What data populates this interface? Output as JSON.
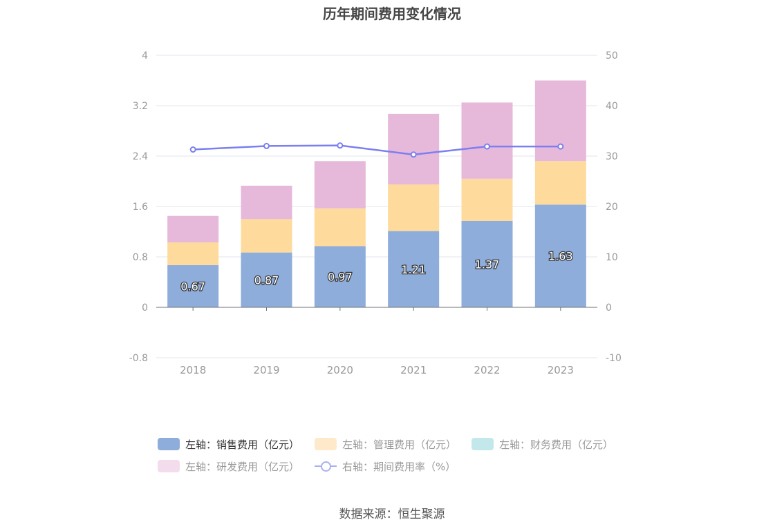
{
  "title": "历年期间费用变化情况",
  "source": "数据来源：恒生聚源",
  "colors": {
    "sales": "#8eaddb",
    "admin": "#fedb9c",
    "finance": "#c3e8ec",
    "rnd": "#e6b8da",
    "ratio": "#7b7ff0",
    "grid": "#e1e4ee",
    "axis": "#999999"
  },
  "legend": {
    "sales": "左轴：销售费用（亿元）",
    "admin": "左轴：管理费用（亿元）",
    "finance": "左轴：财务费用（亿元）",
    "rnd": "左轴：研发费用（亿元）",
    "ratio": "右轴：期间费用率（%）"
  },
  "chart_data": {
    "type": "bar",
    "stacked": true,
    "categories": [
      "2018",
      "2019",
      "2020",
      "2021",
      "2022",
      "2023"
    ],
    "left_axis": {
      "ticks": [
        "4",
        "3.2",
        "2.4",
        "1.6",
        "0.8",
        "0",
        "-0.8"
      ],
      "ylim": [
        -0.8,
        4
      ]
    },
    "right_axis": {
      "ticks": [
        "50",
        "40",
        "30",
        "20",
        "10",
        "0",
        "-10"
      ],
      "ylim": [
        -10,
        50
      ]
    },
    "series": [
      {
        "key": "sales",
        "values": [
          0.67,
          0.87,
          0.97,
          1.21,
          1.37,
          1.63
        ],
        "labels": [
          "0.67",
          "0.87",
          "0.97",
          "1.21",
          "1.37",
          "1.63"
        ]
      },
      {
        "key": "admin",
        "values": [
          0.36,
          0.53,
          0.6,
          0.74,
          0.67,
          0.69
        ]
      },
      {
        "key": "finance",
        "values": [
          0,
          0,
          0,
          0,
          0,
          0
        ]
      },
      {
        "key": "rnd",
        "values": [
          0.42,
          0.53,
          0.75,
          1.12,
          1.21,
          1.28
        ]
      }
    ],
    "line_series": {
      "key": "ratio",
      "axis": "right",
      "values": [
        31.3,
        32.0,
        32.1,
        30.3,
        31.9,
        31.9
      ]
    },
    "grid": true,
    "legend_position": "bottom"
  }
}
